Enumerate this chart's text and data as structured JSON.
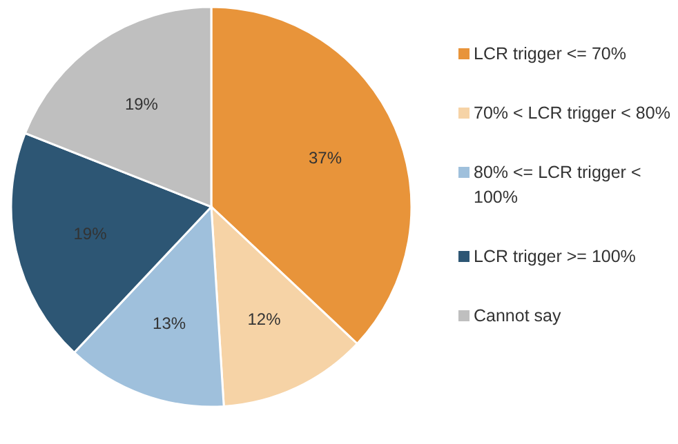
{
  "chart_data": {
    "type": "pie",
    "categories": [
      "LCR trigger <= 70%",
      "70% < LCR trigger < 80%",
      "80% <= LCR trigger < 100%",
      "LCR trigger >= 100%",
      "Cannot say"
    ],
    "values": [
      37,
      12,
      13,
      19,
      19
    ],
    "colors": [
      "#e8943a",
      "#f6d3a6",
      "#9fc0dc",
      "#2d5674",
      "#bfbfbf"
    ],
    "value_labels": [
      "37%",
      "12%",
      "13%",
      "19%",
      "19%"
    ],
    "legend": "right"
  }
}
